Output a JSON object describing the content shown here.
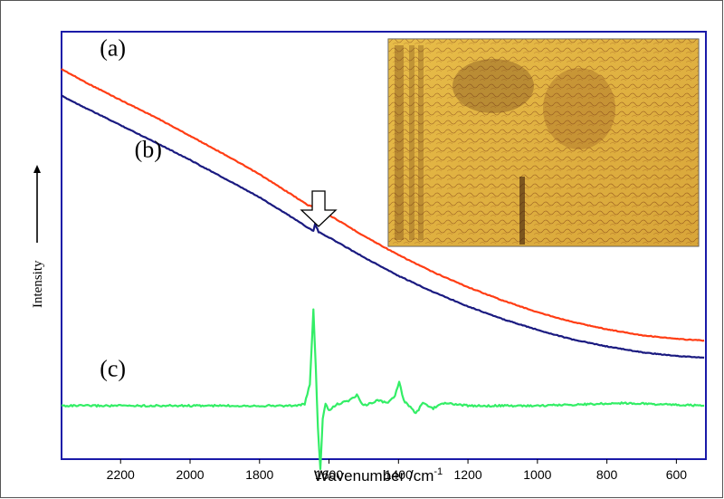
{
  "chart_data": {
    "type": "line",
    "xlabel": "Wavenumber /cm",
    "xlabel_sup": "-1",
    "ylabel": "Intensity",
    "x_reversed": true,
    "xlim": [
      2370,
      515
    ],
    "ylim": [
      -1.0,
      7.0
    ],
    "xticks": [
      2200,
      2000,
      1800,
      1600,
      1400,
      1200,
      1000,
      800,
      600
    ],
    "xtick_labels": [
      "2200",
      "2000",
      "1800",
      "1600",
      "1400",
      "1200",
      "1000",
      "800",
      "600"
    ],
    "grid": false,
    "series": [
      {
        "name": "(a)",
        "color": "#ff3d14",
        "points": [
          [
            2370,
            6.3
          ],
          [
            2300,
            6.05
          ],
          [
            2200,
            5.72
          ],
          [
            2100,
            5.4
          ],
          [
            2000,
            5.05
          ],
          [
            1900,
            4.7
          ],
          [
            1800,
            4.33
          ],
          [
            1700,
            3.92
          ],
          [
            1660,
            3.75
          ],
          [
            1640,
            3.73
          ],
          [
            1630,
            3.82
          ],
          [
            1620,
            3.68
          ],
          [
            1600,
            3.57
          ],
          [
            1500,
            3.18
          ],
          [
            1400,
            2.82
          ],
          [
            1300,
            2.5
          ],
          [
            1200,
            2.22
          ],
          [
            1100,
            1.97
          ],
          [
            1000,
            1.75
          ],
          [
            900,
            1.57
          ],
          [
            800,
            1.43
          ],
          [
            700,
            1.32
          ],
          [
            600,
            1.25
          ],
          [
            520,
            1.22
          ]
        ]
      },
      {
        "name": "(b)",
        "color": "#1a1a80",
        "points": [
          [
            2370,
            5.8
          ],
          [
            2300,
            5.57
          ],
          [
            2200,
            5.25
          ],
          [
            2100,
            4.93
          ],
          [
            2000,
            4.6
          ],
          [
            1900,
            4.25
          ],
          [
            1800,
            3.9
          ],
          [
            1700,
            3.5
          ],
          [
            1660,
            3.33
          ],
          [
            1645,
            3.27
          ],
          [
            1640,
            3.4
          ],
          [
            1630,
            3.25
          ],
          [
            1600,
            3.15
          ],
          [
            1500,
            2.78
          ],
          [
            1400,
            2.43
          ],
          [
            1300,
            2.13
          ],
          [
            1200,
            1.86
          ],
          [
            1100,
            1.62
          ],
          [
            1000,
            1.42
          ],
          [
            900,
            1.24
          ],
          [
            800,
            1.11
          ],
          [
            700,
            1.0
          ],
          [
            600,
            0.93
          ],
          [
            520,
            0.9
          ]
        ]
      },
      {
        "name": "(c)",
        "color": "#33ee66",
        "points": [
          [
            2370,
            0.0
          ],
          [
            2000,
            0.0
          ],
          [
            1800,
            0.0
          ],
          [
            1700,
            0.0
          ],
          [
            1670,
            0.03
          ],
          [
            1655,
            0.4
          ],
          [
            1645,
            1.8
          ],
          [
            1638,
            0.7
          ],
          [
            1632,
            -0.4
          ],
          [
            1625,
            -1.2
          ],
          [
            1618,
            -0.25
          ],
          [
            1610,
            0.05
          ],
          [
            1600,
            -0.1
          ],
          [
            1580,
            0.02
          ],
          [
            1540,
            0.1
          ],
          [
            1520,
            0.2
          ],
          [
            1500,
            0.0
          ],
          [
            1460,
            0.1
          ],
          [
            1430,
            0.05
          ],
          [
            1410,
            0.18
          ],
          [
            1398,
            0.45
          ],
          [
            1385,
            0.1
          ],
          [
            1370,
            0.0
          ],
          [
            1350,
            -0.15
          ],
          [
            1330,
            0.05
          ],
          [
            1300,
            -0.05
          ],
          [
            1270,
            0.05
          ],
          [
            1200,
            0.0
          ],
          [
            1000,
            0.0
          ],
          [
            750,
            0.05
          ],
          [
            520,
            0.0
          ]
        ]
      }
    ],
    "annotations": [
      {
        "text": "(a)",
        "x": 2260,
        "y": 6.55
      },
      {
        "text": "(b)",
        "x": 2160,
        "y": 4.65
      },
      {
        "text": "(c)",
        "x": 2260,
        "y": 0.55
      }
    ],
    "arrow_annotation": {
      "x": 1630,
      "direction": "down"
    }
  },
  "inset": {
    "description_icon": "manuscript-image"
  }
}
